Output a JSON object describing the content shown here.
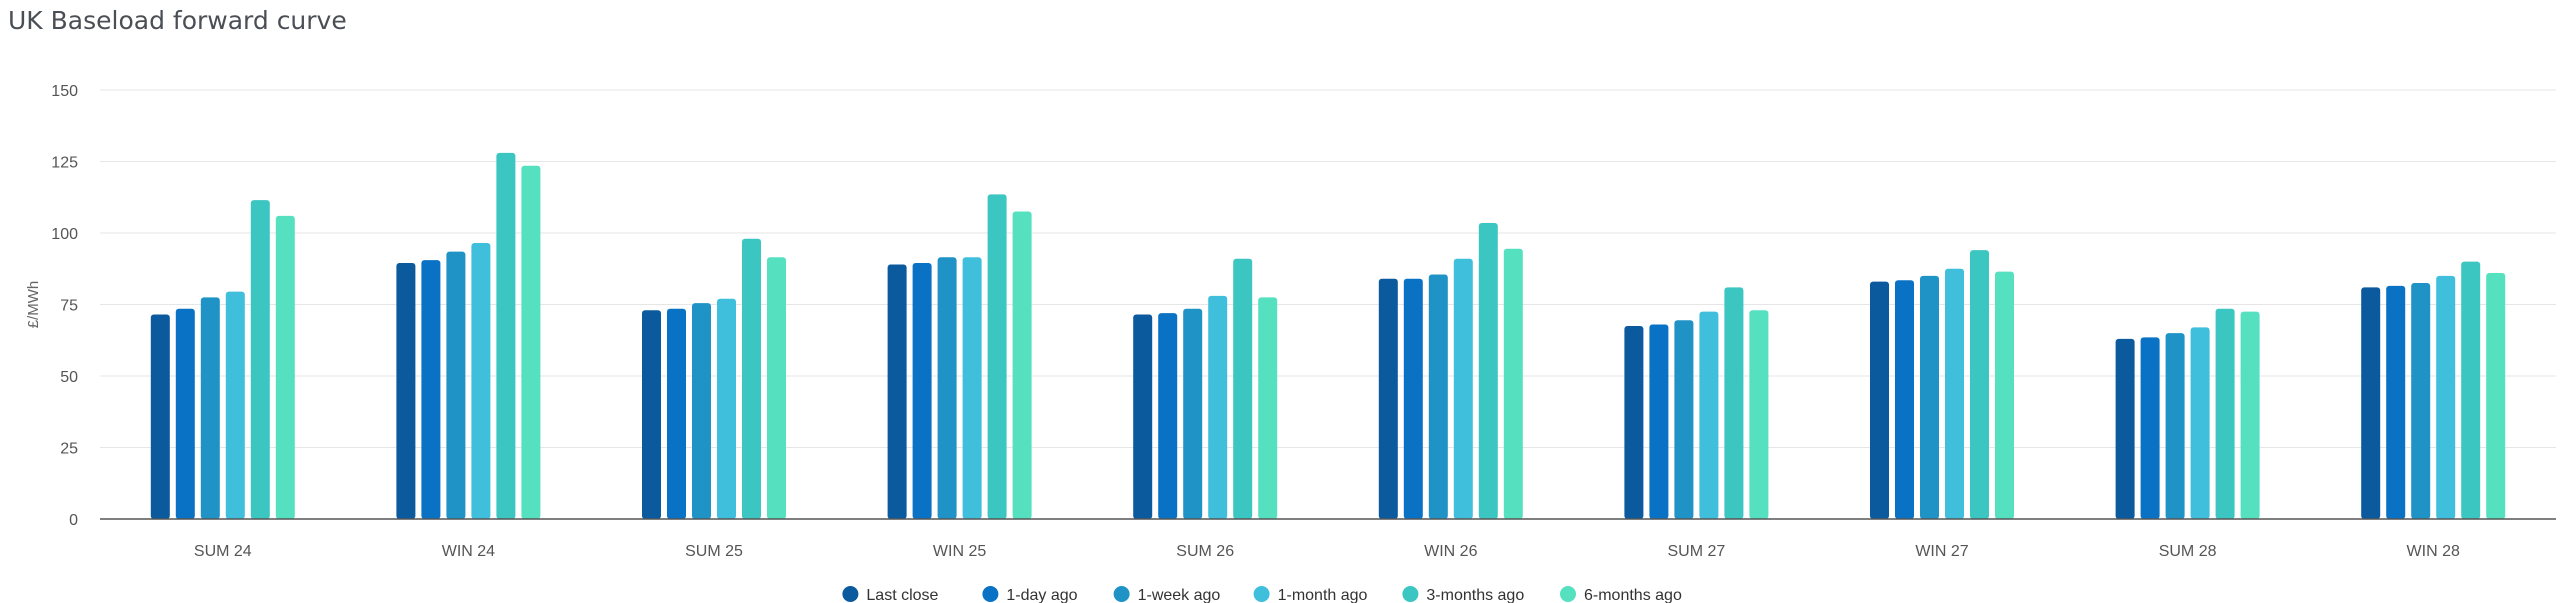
{
  "chart_data": {
    "type": "bar",
    "title": "UK Baseload forward curve",
    "xlabel": "",
    "ylabel": "£/MWh",
    "ylim": [
      0,
      150
    ],
    "yticks": [
      0,
      25,
      50,
      75,
      100,
      125,
      150
    ],
    "grid": true,
    "legend_position": "bottom",
    "categories": [
      "SUM 24",
      "WIN 24",
      "SUM 25",
      "WIN 25",
      "SUM 26",
      "WIN 26",
      "SUM 27",
      "WIN 27",
      "SUM 28",
      "WIN 28"
    ],
    "series": [
      {
        "name": "Last close",
        "color": "#0b5a9e",
        "values": [
          71.5,
          89.5,
          73,
          89,
          71.5,
          84,
          67.5,
          83,
          63,
          81
        ]
      },
      {
        "name": "1-day ago",
        "color": "#0a72c4",
        "values": [
          73.5,
          90.5,
          73.5,
          89.5,
          72,
          84,
          68,
          83.5,
          63.5,
          81.5
        ]
      },
      {
        "name": "1-week ago",
        "color": "#1f93c6",
        "values": [
          77.5,
          93.5,
          75.5,
          91.5,
          73.5,
          85.5,
          69.5,
          85,
          65,
          82.5
        ]
      },
      {
        "name": "1-month ago",
        "color": "#40bfdc",
        "values": [
          79.5,
          96.5,
          77,
          91.5,
          78,
          91,
          72.5,
          87.5,
          67,
          85
        ]
      },
      {
        "name": "3-months ago",
        "color": "#3cc6c2",
        "values": [
          111.5,
          128,
          98,
          113.5,
          91,
          103.5,
          81,
          94,
          73.5,
          90
        ]
      },
      {
        "name": "6-months ago",
        "color": "#55e0c0",
        "values": [
          106,
          123.5,
          91.5,
          107.5,
          77.5,
          94.5,
          73,
          86.5,
          72.5,
          86
        ]
      }
    ]
  }
}
